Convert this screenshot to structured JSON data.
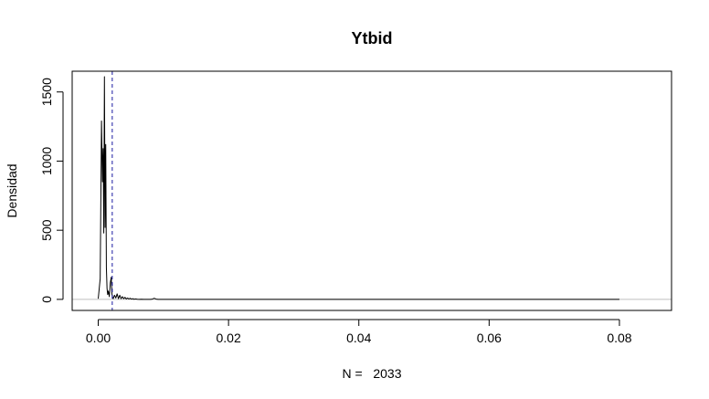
{
  "chart_data": {
    "type": "line",
    "title": "Ytbid",
    "xlabel": "N =   2033",
    "ylabel": "Densidad",
    "xlim": [
      -0.004,
      0.088
    ],
    "ylim": [
      -80,
      1650
    ],
    "x_ticks": [
      {
        "value": 0.0,
        "label": "0.00"
      },
      {
        "value": 0.02,
        "label": "0.02"
      },
      {
        "value": 0.04,
        "label": "0.04"
      },
      {
        "value": 0.06,
        "label": "0.06"
      },
      {
        "value": 0.08,
        "label": "0.08"
      }
    ],
    "y_ticks": [
      {
        "value": 0,
        "label": "0"
      },
      {
        "value": 500,
        "label": "500"
      },
      {
        "value": 1000,
        "label": "1000"
      },
      {
        "value": 1500,
        "label": "1500"
      }
    ],
    "vline": {
      "x": 0.00215,
      "style": "dashed",
      "color": "#1a1aa0"
    },
    "zero_line_color": "#bfbfbf",
    "series": [
      {
        "color": "#000000",
        "x": [
          0.0,
          0.0003,
          0.0005,
          0.00065,
          0.00075,
          0.00085,
          0.00095,
          0.00105,
          0.00115,
          0.00125,
          0.00135,
          0.00145,
          0.00155,
          0.0017,
          0.00185,
          0.002,
          0.0021,
          0.0022,
          0.0023,
          0.0025,
          0.0027,
          0.0029,
          0.0031,
          0.0033,
          0.0035,
          0.0037,
          0.0039,
          0.0041,
          0.0043,
          0.0045,
          0.0047,
          0.0049,
          0.0051,
          0.0053,
          0.0055,
          0.0057,
          0.006,
          0.0063,
          0.0066,
          0.007,
          0.0075,
          0.008,
          0.0083,
          0.0086,
          0.0089,
          0.0092,
          0.01,
          0.015,
          0.02,
          0.03,
          0.04,
          0.05,
          0.06,
          0.07,
          0.08
        ],
        "y": [
          5,
          150,
          1290,
          850,
          1090,
          480,
          1610,
          520,
          1120,
          230,
          80,
          35,
          60,
          20,
          120,
          160,
          40,
          15,
          5,
          30,
          10,
          40,
          5,
          30,
          5,
          20,
          5,
          15,
          3,
          10,
          3,
          8,
          2,
          5,
          1,
          3,
          1,
          0,
          1,
          0,
          0,
          0,
          2,
          8,
          2,
          0,
          0,
          0,
          0,
          0,
          0,
          0,
          0,
          0,
          0
        ]
      }
    ]
  }
}
